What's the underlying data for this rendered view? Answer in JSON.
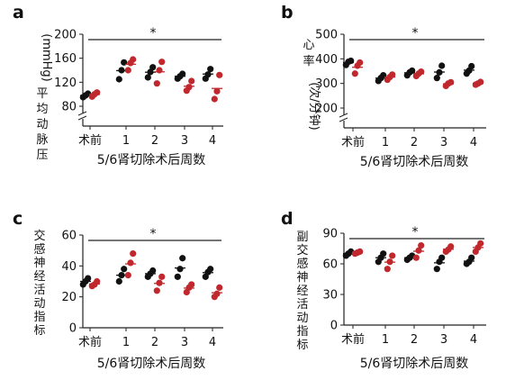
{
  "colors": {
    "black_group": "#111111",
    "red_group": "#c0282d",
    "axis": "#222222"
  },
  "chart_data": [
    {
      "type": "scatter",
      "panel_label": "a",
      "ylabel": "平均动脉压（mmHg）",
      "xlabel": "5/6肾切除术后周数",
      "categories": [
        "术前",
        "1",
        "2",
        "3",
        "4"
      ],
      "ylim": [
        80,
        200
      ],
      "yticks": [
        80,
        120,
        160,
        200
      ],
      "tick_labels": [
        "80",
        "120",
        "160",
        "200"
      ],
      "axis_break": true,
      "significance": "*",
      "series": [
        {
          "values": [
            [
              95,
              98,
              101
            ],
            [
              125,
              140,
              153
            ],
            [
              128,
              137,
              145
            ],
            [
              126,
              130,
              134
            ],
            [
              126,
              133,
              142
            ]
          ]
        },
        {
          "values": [
            [
              96,
              100,
              103
            ],
            [
              140,
              152,
              158
            ],
            [
              118,
              140,
              154
            ],
            [
              106,
              112,
              122
            ],
            [
              92,
              105,
              132
            ]
          ]
        }
      ]
    },
    {
      "type": "scatter",
      "panel_label": "b",
      "ylabel": "心率（次/分钟）",
      "xlabel": "5/6肾切除术后周数",
      "categories": [
        "术前",
        "1",
        "2",
        "3",
        "4"
      ],
      "ylim": [
        200,
        500
      ],
      "yticks": [
        200,
        300,
        400,
        500
      ],
      "tick_labels": [
        "200",
        "300",
        "400",
        "500"
      ],
      "axis_break": true,
      "significance": "*",
      "series": [
        {
          "values": [
            [
              375,
              388,
              392
            ],
            [
              310,
              322,
              333
            ],
            [
              333,
              345,
              352
            ],
            [
              322,
              345,
              372
            ],
            [
              340,
              352,
              370
            ]
          ]
        },
        {
          "values": [
            [
              340,
              372,
              385
            ],
            [
              315,
              326,
              336
            ],
            [
              330,
              340,
              348
            ],
            [
              290,
              300,
              305
            ],
            [
              295,
              300,
              306
            ]
          ]
        }
      ]
    },
    {
      "type": "scatter",
      "panel_label": "c",
      "ylabel": "交感神经活动指标",
      "xlabel": "5/6肾切除术后周数",
      "categories": [
        "术前",
        "1",
        "2",
        "3",
        "4"
      ],
      "ylim": [
        0,
        60
      ],
      "yticks": [
        0,
        20,
        40,
        60
      ],
      "tick_labels": [
        "0",
        "20",
        "40",
        "60"
      ],
      "significance": "*",
      "series": [
        {
          "values": [
            [
              28,
              30,
              32
            ],
            [
              30,
              34,
              38
            ],
            [
              33,
              35,
              37
            ],
            [
              33,
              38,
              45
            ],
            [
              33,
              36,
              38
            ]
          ]
        },
        {
          "values": [
            [
              27,
              28,
              30
            ],
            [
              34,
              42,
              48
            ],
            [
              24,
              29,
              33
            ],
            [
              23,
              26,
              28
            ],
            [
              20,
              22,
              26
            ]
          ]
        }
      ]
    },
    {
      "type": "scatter",
      "panel_label": "d",
      "ylabel": "副交感神经活动指标",
      "xlabel": "5/6肾切除术后周数",
      "categories": [
        "术前",
        "1",
        "2",
        "3",
        "4"
      ],
      "ylim": [
        0,
        90
      ],
      "yticks": [
        0,
        30,
        60,
        90
      ],
      "tick_labels": [
        "0",
        "30",
        "60",
        "90"
      ],
      "significance": "*",
      "series": [
        {
          "values": [
            [
              68,
              70,
              72
            ],
            [
              62,
              66,
              70
            ],
            [
              64,
              66,
              68
            ],
            [
              55,
              62,
              66
            ],
            [
              60,
              62,
              66
            ]
          ]
        },
        {
          "values": [
            [
              70,
              71,
              72
            ],
            [
              55,
              62,
              68
            ],
            [
              66,
              73,
              78
            ],
            [
              72,
              74,
              77
            ],
            [
              72,
              76,
              80
            ]
          ]
        }
      ]
    }
  ]
}
